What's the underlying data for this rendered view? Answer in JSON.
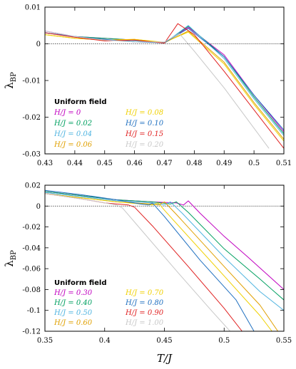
{
  "chart_data": [
    {
      "type": "line",
      "ylabel": "λ_BP",
      "ylabel_main": "λ",
      "ylabel_sub": "BP",
      "xlabel": "",
      "xlim": [
        0.43,
        0.51
      ],
      "ylim": [
        -0.03,
        0.01
      ],
      "xticks": [
        "0.43",
        "0.44",
        "0.45",
        "0.46",
        "0.47",
        "0.48",
        "0.49",
        "0.5",
        "0.51"
      ],
      "xtick_values": [
        0.43,
        0.44,
        0.45,
        0.46,
        0.47,
        0.48,
        0.49,
        0.5,
        0.51
      ],
      "yticks": [
        "0.01",
        "0",
        "-0.01",
        "-0.02",
        "-0.03"
      ],
      "ytick_values": [
        0.01,
        0,
        -0.01,
        -0.02,
        -0.03
      ],
      "reference_line": 0,
      "legend_title": "Uniform field",
      "legend_position": "bottom-left",
      "series": [
        {
          "name": "H/J = 0",
          "color": "#c000c0",
          "points": [
            [
              0.43,
              0.0035
            ],
            [
              0.44,
              0.002
            ],
            [
              0.45,
              0.0015
            ],
            [
              0.46,
              0.001
            ],
            [
              0.47,
              0.0002
            ],
            [
              0.478,
              0.0045
            ],
            [
              0.49,
              -0.003
            ],
            [
              0.5,
              -0.014
            ],
            [
              0.51,
              -0.024
            ]
          ]
        },
        {
          "name": "H/J = 0.02",
          "color": "#00a060",
          "points": [
            [
              0.43,
              0.003
            ],
            [
              0.44,
              0.002
            ],
            [
              0.45,
              0.0015
            ],
            [
              0.46,
              0.001
            ],
            [
              0.47,
              0.0002
            ],
            [
              0.478,
              0.0048
            ],
            [
              0.49,
              -0.0035
            ],
            [
              0.5,
              -0.0145
            ],
            [
              0.51,
              -0.0245
            ]
          ]
        },
        {
          "name": "H/J = 0.04",
          "color": "#50b4e0",
          "points": [
            [
              0.43,
              0.003
            ],
            [
              0.44,
              0.002
            ],
            [
              0.45,
              0.001
            ],
            [
              0.46,
              0.0008
            ],
            [
              0.47,
              0.0002
            ],
            [
              0.478,
              0.005
            ],
            [
              0.49,
              -0.004
            ],
            [
              0.5,
              -0.015
            ],
            [
              0.51,
              -0.025
            ]
          ]
        },
        {
          "name": "H/J = 0.06",
          "color": "#e0a000",
          "points": [
            [
              0.43,
              0.0025
            ],
            [
              0.44,
              0.0015
            ],
            [
              0.45,
              0.001
            ],
            [
              0.46,
              0.0012
            ],
            [
              0.47,
              0.0003
            ],
            [
              0.478,
              0.0035
            ],
            [
              0.49,
              -0.005
            ],
            [
              0.5,
              -0.016
            ],
            [
              0.51,
              -0.026
            ]
          ]
        },
        {
          "name": "H/J = 0.08",
          "color": "#f0d000",
          "points": [
            [
              0.43,
              0.0025
            ],
            [
              0.44,
              0.0015
            ],
            [
              0.45,
              0.001
            ],
            [
              0.46,
              0.0012
            ],
            [
              0.47,
              0.0004
            ],
            [
              0.478,
              0.0032
            ],
            [
              0.49,
              -0.0055
            ],
            [
              0.5,
              -0.0165
            ],
            [
              0.51,
              -0.0265
            ]
          ]
        },
        {
          "name": "H/J = 0.10",
          "color": "#2070c0",
          "points": [
            [
              0.43,
              0.003
            ],
            [
              0.44,
              0.002
            ],
            [
              0.45,
              0.0012
            ],
            [
              0.46,
              0.0005
            ],
            [
              0.47,
              0.0003
            ],
            [
              0.478,
              0.0042
            ],
            [
              0.49,
              -0.0035
            ],
            [
              0.5,
              -0.014
            ],
            [
              0.51,
              -0.0235
            ]
          ]
        },
        {
          "name": "H/J = 0.15",
          "color": "#e02020",
          "points": [
            [
              0.43,
              0.003
            ],
            [
              0.44,
              0.0018
            ],
            [
              0.45,
              0.0008
            ],
            [
              0.46,
              0.001
            ],
            [
              0.47,
              0.0002
            ],
            [
              0.4745,
              0.0055
            ],
            [
              0.48,
              0.0025
            ],
            [
              0.49,
              -0.0075
            ],
            [
              0.5,
              -0.018
            ],
            [
              0.51,
              -0.0285
            ]
          ]
        },
        {
          "name": "H/J = 0.20",
          "color": "#c8c8c8",
          "points": [
            [
              0.43,
              0.0035
            ],
            [
              0.44,
              0.002
            ],
            [
              0.45,
              0.001
            ],
            [
              0.46,
              0.0005
            ],
            [
              0.47,
              0.0005
            ],
            [
              0.475,
              0.0028
            ],
            [
              0.48,
              -0.002
            ],
            [
              0.49,
              -0.012
            ],
            [
              0.5,
              -0.023
            ],
            [
              0.505,
              -0.0285
            ]
          ]
        }
      ]
    },
    {
      "type": "line",
      "ylabel": "λ_BP",
      "ylabel_main": "λ",
      "ylabel_sub": "BP",
      "xlabel": "T/J",
      "xlim": [
        0.35,
        0.55
      ],
      "ylim": [
        -0.12,
        0.02
      ],
      "xticks": [
        "0.35",
        "0.4",
        "0.45",
        "0.5",
        "0.55"
      ],
      "xtick_values": [
        0.35,
        0.4,
        0.45,
        0.5,
        0.55
      ],
      "yticks": [
        "0.02",
        "0",
        "-0.02",
        "-0.04",
        "-0.06",
        "-0.08",
        "-0.1",
        "-0.12"
      ],
      "ytick_values": [
        0.02,
        0,
        -0.02,
        -0.04,
        -0.06,
        -0.08,
        -0.1,
        -0.12
      ],
      "reference_line": 0,
      "legend_title": "Uniform field",
      "legend_position": "bottom-left",
      "series": [
        {
          "name": "H/J = 0.30",
          "color": "#c000c0",
          "points": [
            [
              0.35,
              0.014
            ],
            [
              0.38,
              0.01
            ],
            [
              0.41,
              0.006
            ],
            [
              0.44,
              0.004
            ],
            [
              0.46,
              0.003
            ],
            [
              0.466,
              0.001
            ],
            [
              0.47,
              0.005
            ],
            [
              0.48,
              -0.007
            ],
            [
              0.5,
              -0.029
            ],
            [
              0.52,
              -0.049
            ],
            [
              0.55,
              -0.08
            ]
          ]
        },
        {
          "name": "H/J = 0.40",
          "color": "#00a060",
          "points": [
            [
              0.35,
              0.014
            ],
            [
              0.38,
              0.01
            ],
            [
              0.41,
              0.006
            ],
            [
              0.44,
              0.004
            ],
            [
              0.455,
              0.002
            ],
            [
              0.46,
              0.004
            ],
            [
              0.47,
              -0.006
            ],
            [
              0.5,
              -0.041
            ],
            [
              0.53,
              -0.07
            ],
            [
              0.55,
              -0.09
            ]
          ]
        },
        {
          "name": "H/J = 0.50",
          "color": "#50b4e0",
          "points": [
            [
              0.35,
              0.013
            ],
            [
              0.38,
              0.009
            ],
            [
              0.41,
              0.005
            ],
            [
              0.44,
              0.003
            ],
            [
              0.45,
              0.001
            ],
            [
              0.455,
              0.004
            ],
            [
              0.465,
              -0.007
            ],
            [
              0.5,
              -0.049
            ],
            [
              0.53,
              -0.082
            ],
            [
              0.55,
              -0.1
            ]
          ]
        },
        {
          "name": "H/J = 0.60",
          "color": "#e0a000",
          "points": [
            [
              0.35,
              0.012
            ],
            [
              0.38,
              0.008
            ],
            [
              0.41,
              0.004
            ],
            [
              0.44,
              0.002
            ],
            [
              0.445,
              0.001
            ],
            [
              0.45,
              0.004
            ],
            [
              0.46,
              -0.008
            ],
            [
              0.5,
              -0.058
            ],
            [
              0.53,
              -0.095
            ],
            [
              0.545,
              -0.12
            ]
          ]
        },
        {
          "name": "H/J = 0.70",
          "color": "#f0d000",
          "points": [
            [
              0.35,
              0.012
            ],
            [
              0.38,
              0.008
            ],
            [
              0.41,
              0.004
            ],
            [
              0.44,
              0.001
            ],
            [
              0.445,
              0.003
            ],
            [
              0.45,
              -0.004
            ],
            [
              0.5,
              -0.067
            ],
            [
              0.53,
              -0.105
            ],
            [
              0.54,
              -0.12
            ]
          ]
        },
        {
          "name": "H/J = 0.80",
          "color": "#2070c0",
          "points": [
            [
              0.35,
              0.015
            ],
            [
              0.38,
              0.011
            ],
            [
              0.41,
              0.006
            ],
            [
              0.43,
              0.002
            ],
            [
              0.437,
              0.001
            ],
            [
              0.44,
              0.003
            ],
            [
              0.45,
              -0.01
            ],
            [
              0.48,
              -0.052
            ],
            [
              0.51,
              -0.09
            ],
            [
              0.525,
              -0.12
            ]
          ]
        },
        {
          "name": "H/J = 0.90",
          "color": "#e02020",
          "points": [
            [
              0.35,
              0.012
            ],
            [
              0.38,
              0.007
            ],
            [
              0.4,
              0.003
            ],
            [
              0.42,
              0.001
            ],
            [
              0.425,
              -0.001
            ],
            [
              0.44,
              -0.019
            ],
            [
              0.47,
              -0.058
            ],
            [
              0.5,
              -0.098
            ],
            [
              0.515,
              -0.12
            ]
          ]
        },
        {
          "name": "H/J = 1.00",
          "color": "#c8c8c8",
          "points": [
            [
              0.35,
              0.012
            ],
            [
              0.38,
              0.007
            ],
            [
              0.4,
              0.003
            ],
            [
              0.41,
              0.001
            ],
            [
              0.415,
              -0.002
            ],
            [
              0.43,
              -0.022
            ],
            [
              0.46,
              -0.062
            ],
            [
              0.49,
              -0.101
            ],
            [
              0.505,
              -0.12
            ]
          ]
        }
      ]
    }
  ]
}
